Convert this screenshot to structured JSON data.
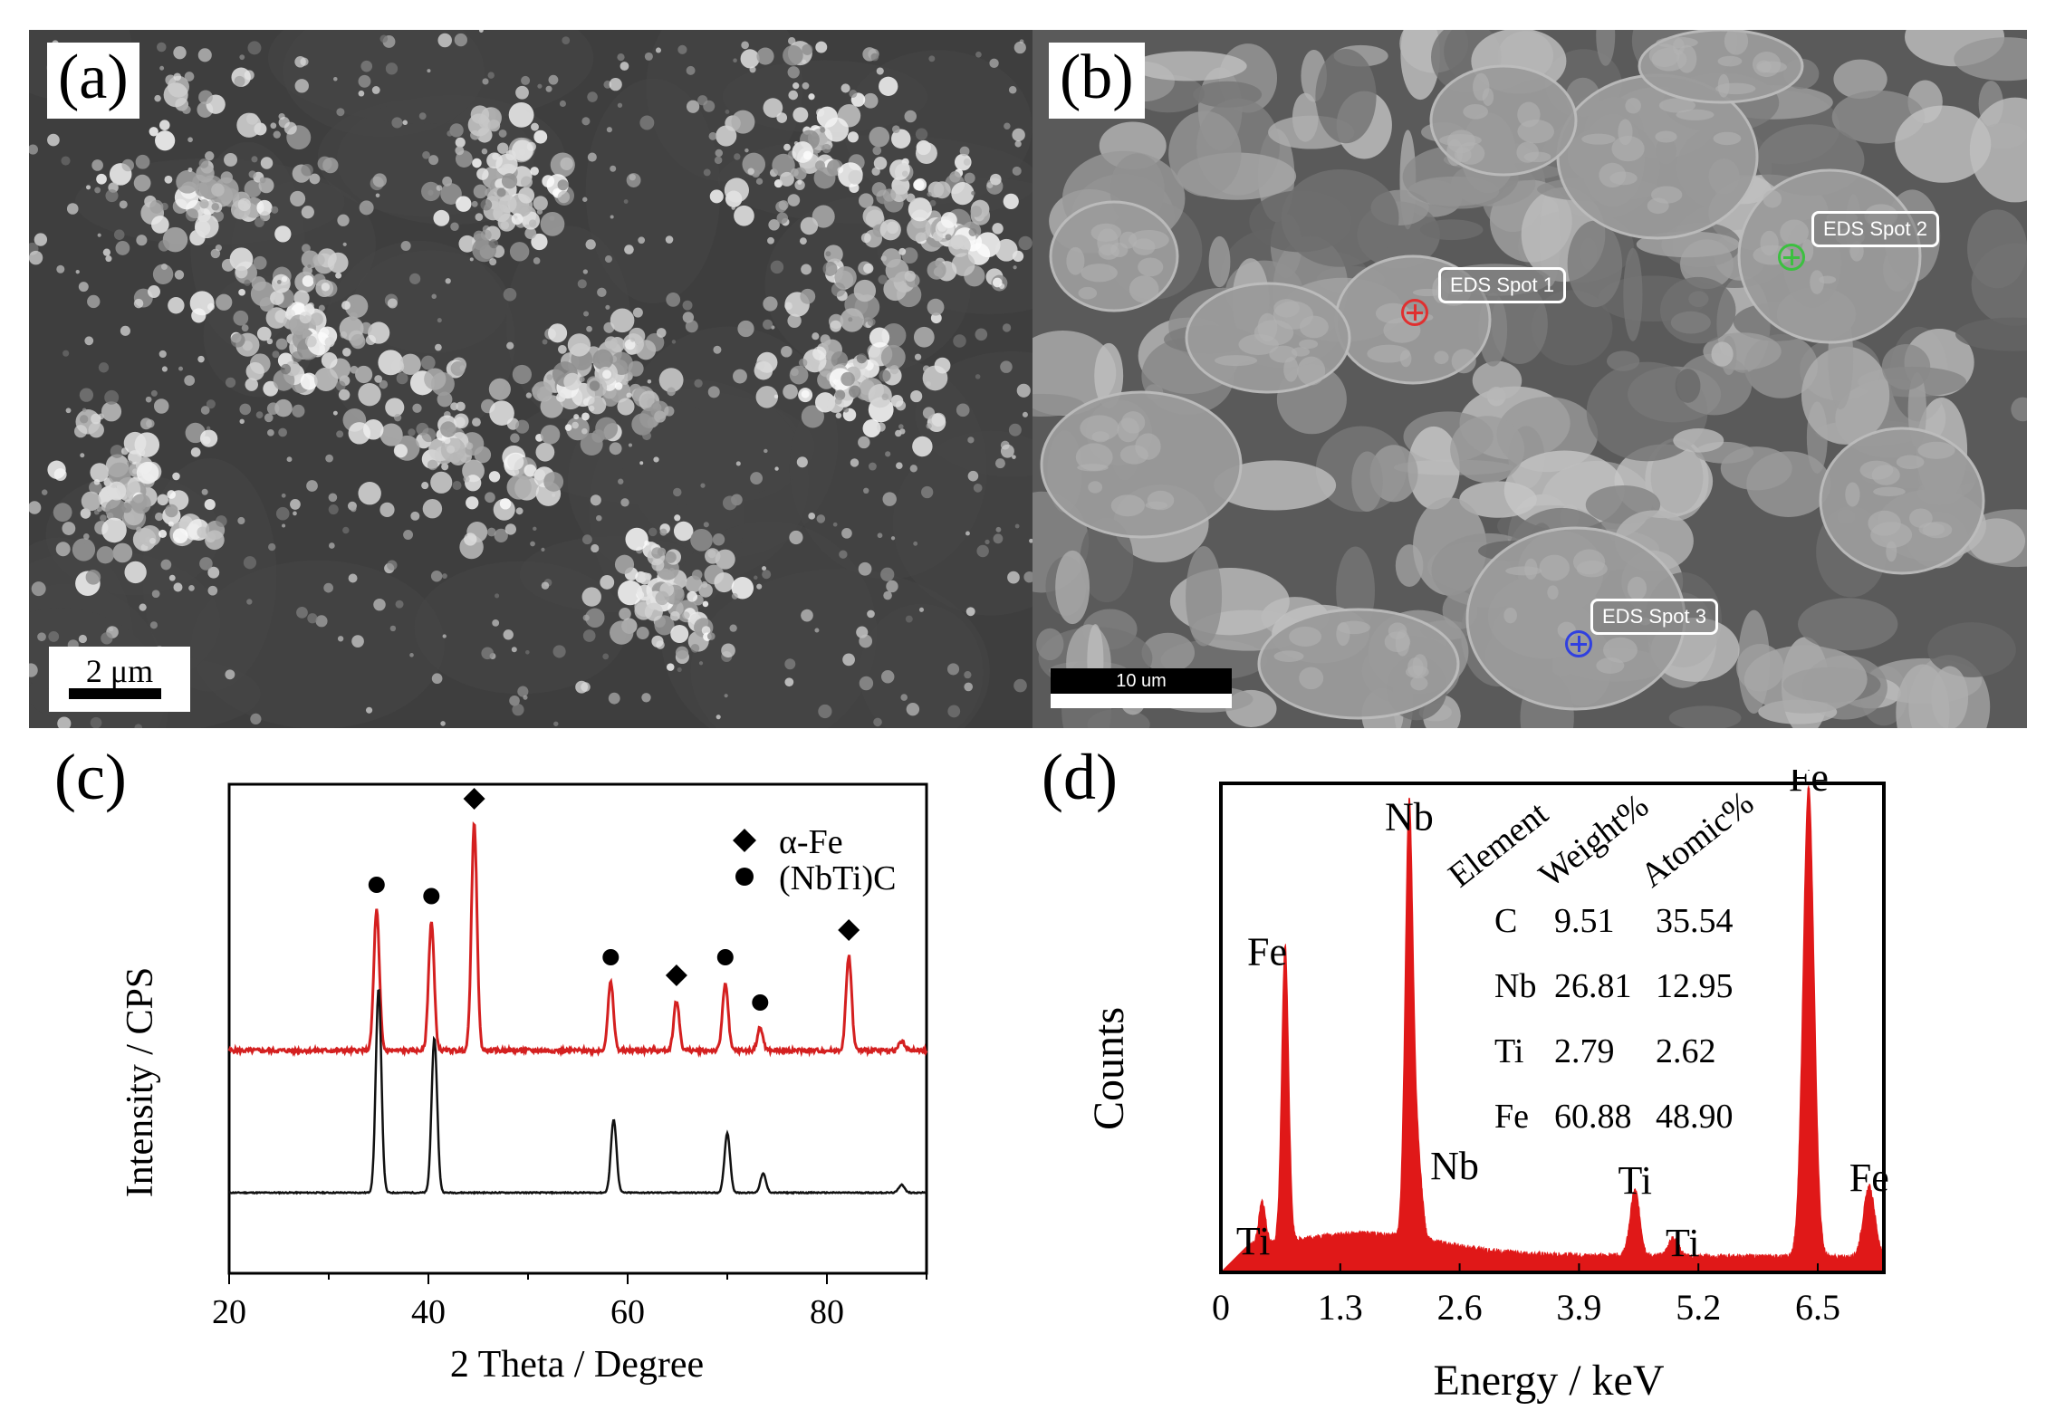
{
  "panels": {
    "a": {
      "label": "(a)",
      "scalebar": "2 μm"
    },
    "b": {
      "label": "(b)",
      "scalebar": "10 um",
      "spots": [
        {
          "label": "EDS Spot 1",
          "color": "#e03030"
        },
        {
          "label": "EDS Spot 2",
          "color": "#3cc040"
        },
        {
          "label": "EDS Spot 3",
          "color": "#3040e0"
        }
      ]
    },
    "c": {
      "label": "(c)"
    },
    "d": {
      "label": "(d)"
    }
  },
  "chart_data": [
    {
      "type": "line",
      "panel": "(c)",
      "xlabel": "2 Theta / Degree",
      "ylabel": "Intensity / CPS",
      "xlim": [
        20,
        90
      ],
      "xticks": [
        20,
        40,
        60,
        80
      ],
      "legend": {
        "placement": "top-right",
        "entries": [
          {
            "marker": "diamond",
            "label": "α-Fe"
          },
          {
            "marker": "circle",
            "label": "(NbTi)C"
          }
        ]
      },
      "series": [
        {
          "color": "#d42020",
          "peaks": [
            {
              "x": 34.8,
              "y": 0.62,
              "phase": "(NbTi)C"
            },
            {
              "x": 40.3,
              "y": 0.57,
              "phase": "(NbTi)C"
            },
            {
              "x": 44.6,
              "y": 1.0,
              "phase": "α-Fe"
            },
            {
              "x": 58.3,
              "y": 0.3,
              "phase": "(NbTi)C"
            },
            {
              "x": 64.9,
              "y": 0.22,
              "phase": "α-Fe"
            },
            {
              "x": 69.8,
              "y": 0.3,
              "phase": "(NbTi)C"
            },
            {
              "x": 73.3,
              "y": 0.1,
              "phase": "(NbTi)C"
            },
            {
              "x": 82.2,
              "y": 0.42,
              "phase": "α-Fe"
            },
            {
              "x": 87.5,
              "y": 0.04,
              "phase": ""
            }
          ]
        },
        {
          "color": "#111111",
          "peaks": [
            {
              "x": 35.0,
              "y": 0.75
            },
            {
              "x": 40.6,
              "y": 0.57
            },
            {
              "x": 58.6,
              "y": 0.27
            },
            {
              "x": 70.0,
              "y": 0.22
            },
            {
              "x": 73.6,
              "y": 0.07
            },
            {
              "x": 87.5,
              "y": 0.03
            }
          ]
        }
      ]
    },
    {
      "type": "area",
      "panel": "(d)",
      "xlabel": "Energy / keV",
      "ylabel": "Counts",
      "xlim": [
        0,
        7.0
      ],
      "xticks": [
        "0",
        "1.3",
        "2.6",
        "3.9",
        "5.2",
        "6.5"
      ],
      "fill": "#e01818",
      "peaks": [
        {
          "x": 0.45,
          "y": 0.09,
          "label": "Ti"
        },
        {
          "x": 0.7,
          "y": 0.63,
          "label": "Fe"
        },
        {
          "x": 2.05,
          "y": 0.92,
          "label": "Nb"
        },
        {
          "x": 2.15,
          "y": 0.16,
          "label": "Nb"
        },
        {
          "x": 4.51,
          "y": 0.14,
          "label": "Ti"
        },
        {
          "x": 4.93,
          "y": 0.04,
          "label": "Ti"
        },
        {
          "x": 6.4,
          "y": 1.0,
          "label": "Fe"
        },
        {
          "x": 7.06,
          "y": 0.15,
          "label": "Fe"
        }
      ],
      "table": {
        "headers": [
          "Element",
          "Weight%",
          "Atomic%"
        ],
        "rows": [
          [
            "C",
            "9.51",
            "35.54"
          ],
          [
            "Nb",
            "26.81",
            "12.95"
          ],
          [
            "Ti",
            "2.79",
            "2.62"
          ],
          [
            "Fe",
            "60.88",
            "48.90"
          ]
        ]
      }
    }
  ]
}
